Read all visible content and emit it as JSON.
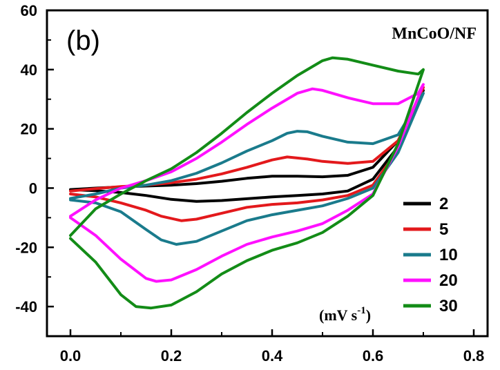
{
  "chart_data": {
    "type": "line",
    "panel_label": "(b)",
    "title": "MnCoO/NF",
    "xlabel": "",
    "ylabel": "",
    "xlim": [
      0,
      0.8
    ],
    "ylim": [
      -50,
      60
    ],
    "x_ticks": [
      "0.0",
      "0.2",
      "0.4",
      "0.6",
      "0.8"
    ],
    "y_ticks": [
      "-40",
      "-20",
      "0",
      "20",
      "40",
      "60"
    ],
    "legend_position": "bottom-right",
    "legend_unit_prefix": "(mV s",
    "legend_unit_exp": "-1",
    "legend_unit_suffix": ")",
    "series": [
      {
        "name": "2",
        "color": "#000000",
        "x": [
          0.0,
          0.05,
          0.1,
          0.15,
          0.2,
          0.25,
          0.3,
          0.35,
          0.4,
          0.45,
          0.5,
          0.55,
          0.6,
          0.65,
          0.7,
          0.65,
          0.6,
          0.55,
          0.5,
          0.45,
          0.4,
          0.35,
          0.3,
          0.25,
          0.2,
          0.15,
          0.1,
          0.05,
          0.0
        ],
        "y": [
          -0.5,
          0.0,
          0.4,
          0.7,
          1.0,
          1.5,
          2.3,
          3.3,
          4.0,
          4.0,
          3.8,
          4.3,
          7.0,
          16.0,
          33.0,
          14.0,
          3.0,
          -1.0,
          -2.0,
          -2.5,
          -3.0,
          -3.6,
          -4.2,
          -4.5,
          -3.8,
          -2.5,
          -1.5,
          -0.9,
          -0.5
        ]
      },
      {
        "name": "5",
        "color": "#e3191c",
        "x": [
          0.0,
          0.05,
          0.1,
          0.15,
          0.2,
          0.25,
          0.3,
          0.35,
          0.4,
          0.43,
          0.47,
          0.5,
          0.55,
          0.6,
          0.65,
          0.7,
          0.65,
          0.6,
          0.55,
          0.5,
          0.45,
          0.4,
          0.35,
          0.3,
          0.25,
          0.22,
          0.18,
          0.15,
          0.1,
          0.05,
          0.0
        ],
        "y": [
          -1.0,
          -0.2,
          0.5,
          1.0,
          1.8,
          3.0,
          4.8,
          7.0,
          9.5,
          10.5,
          9.8,
          9.0,
          8.3,
          9.0,
          16.0,
          34.0,
          13.0,
          1.0,
          -2.5,
          -4.0,
          -5.0,
          -5.5,
          -6.5,
          -8.5,
          -10.5,
          -11.0,
          -9.5,
          -7.5,
          -5.0,
          -3.0,
          -2.0
        ]
      },
      {
        "name": "10",
        "color": "#1a7b8c",
        "x": [
          0.0,
          0.05,
          0.1,
          0.15,
          0.2,
          0.25,
          0.3,
          0.35,
          0.4,
          0.43,
          0.45,
          0.47,
          0.5,
          0.55,
          0.6,
          0.65,
          0.7,
          0.65,
          0.6,
          0.55,
          0.5,
          0.45,
          0.4,
          0.35,
          0.3,
          0.25,
          0.21,
          0.18,
          0.15,
          0.1,
          0.05,
          0.0
        ],
        "y": [
          -3.5,
          -2.0,
          0.0,
          1.0,
          2.5,
          5.0,
          8.5,
          12.5,
          16.0,
          18.5,
          19.2,
          19.0,
          17.5,
          15.5,
          15.0,
          18.0,
          32.0,
          12.0,
          0.0,
          -3.5,
          -6.0,
          -7.5,
          -9.0,
          -11.0,
          -14.5,
          -18.0,
          -19.0,
          -17.5,
          -14.0,
          -8.0,
          -5.0,
          -4.0
        ]
      },
      {
        "name": "20",
        "color": "#ff10ff",
        "x": [
          0.0,
          0.05,
          0.1,
          0.15,
          0.2,
          0.25,
          0.3,
          0.35,
          0.4,
          0.45,
          0.48,
          0.5,
          0.55,
          0.6,
          0.65,
          0.69,
          0.7,
          0.65,
          0.6,
          0.55,
          0.5,
          0.45,
          0.4,
          0.35,
          0.3,
          0.25,
          0.2,
          0.17,
          0.15,
          0.1,
          0.05,
          0.0
        ],
        "y": [
          -9.5,
          -4.0,
          0.0,
          2.5,
          5.5,
          10.0,
          15.5,
          21.5,
          27.0,
          32.0,
          33.5,
          33.0,
          30.5,
          28.5,
          28.5,
          32.0,
          35.0,
          14.0,
          -2.0,
          -7.5,
          -12.0,
          -14.5,
          -16.5,
          -19.0,
          -23.0,
          -27.5,
          -31.0,
          -31.5,
          -30.5,
          -24.0,
          -16.0,
          -10.0
        ]
      },
      {
        "name": "30",
        "color": "#138c17",
        "x": [
          0.0,
          0.05,
          0.1,
          0.15,
          0.2,
          0.25,
          0.3,
          0.35,
          0.4,
          0.45,
          0.5,
          0.52,
          0.55,
          0.6,
          0.65,
          0.69,
          0.7,
          0.65,
          0.6,
          0.55,
          0.5,
          0.45,
          0.4,
          0.35,
          0.3,
          0.25,
          0.2,
          0.16,
          0.13,
          0.1,
          0.05,
          0.0
        ],
        "y": [
          -16.0,
          -7.0,
          -2.0,
          2.5,
          6.5,
          12.0,
          18.5,
          25.5,
          32.0,
          38.0,
          43.0,
          44.0,
          43.5,
          41.5,
          39.5,
          38.5,
          40.0,
          15.0,
          -2.5,
          -9.5,
          -15.0,
          -18.5,
          -21.0,
          -24.5,
          -29.0,
          -35.0,
          -39.5,
          -40.5,
          -40.0,
          -36.0,
          -25.0,
          -17.0
        ]
      }
    ]
  }
}
